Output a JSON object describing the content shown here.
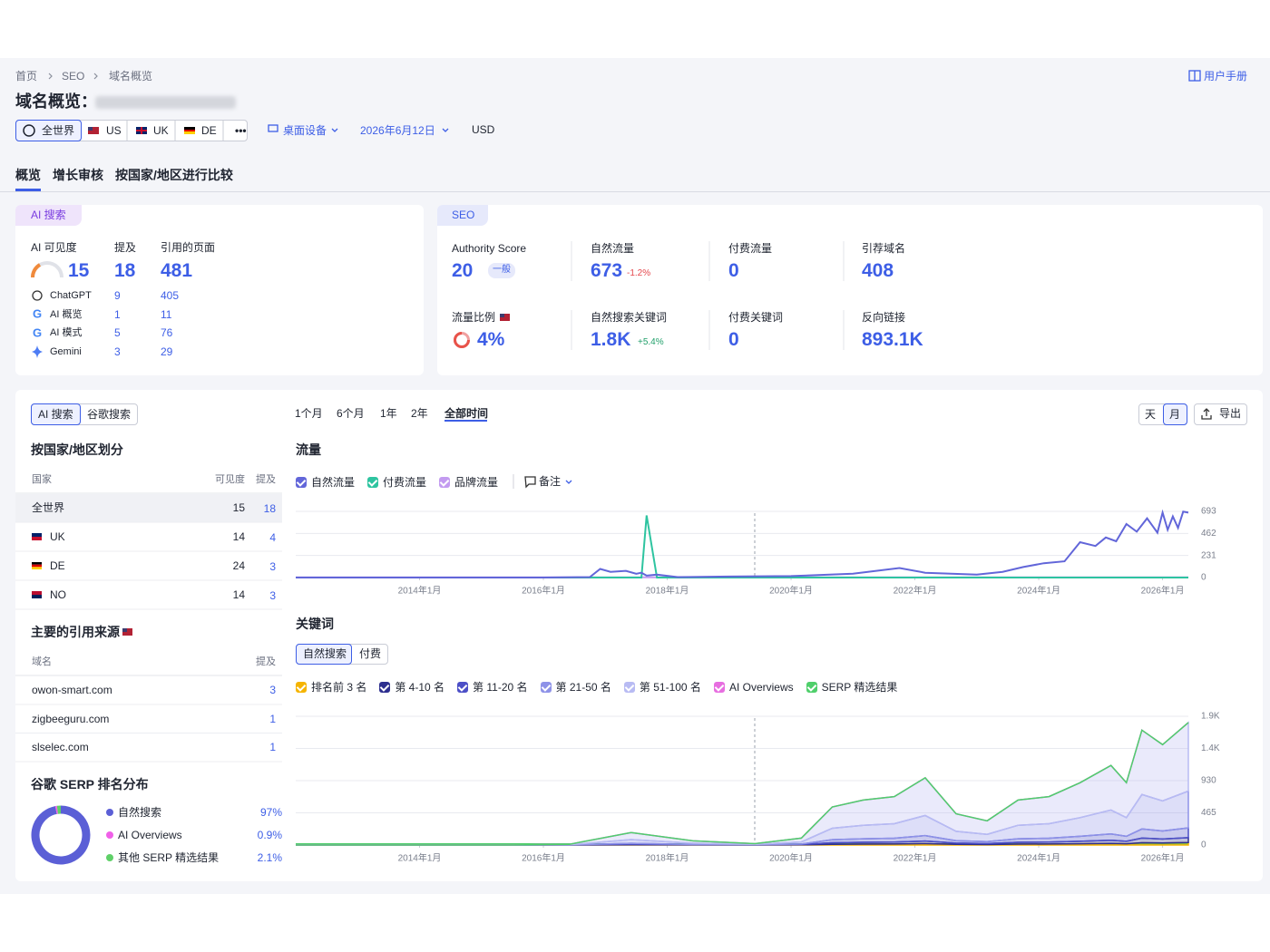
{
  "breadcrumb": [
    "首页",
    "SEO",
    "域名概览"
  ],
  "manual": "用户手册",
  "title": "域名概览：",
  "databases": [
    "全世界",
    "US",
    "UK",
    "DE"
  ],
  "more": "•••",
  "device": "桌面设备",
  "date": "2026年6月12日",
  "currency": "USD",
  "tabs": [
    "概览",
    "增长审核",
    "按国家/地区进行比较"
  ],
  "ai_card": {
    "badge": "AI 搜索",
    "headers": [
      "AI 可见度",
      "提及",
      "引用的页面"
    ],
    "totals": [
      15,
      18,
      481
    ],
    "rows": [
      {
        "name": "ChatGPT",
        "mentions": 9,
        "pages": 405
      },
      {
        "name": "AI 概览",
        "mentions": 1,
        "pages": 11
      },
      {
        "name": "AI 模式",
        "mentions": 5,
        "pages": 76
      },
      {
        "name": "Gemini",
        "mentions": 3,
        "pages": 29
      }
    ]
  },
  "seo_card": {
    "badge": "SEO",
    "metrics": [
      {
        "label": "Authority Score",
        "value": 20,
        "tag": "一般"
      },
      {
        "label": "自然流量",
        "value": 673,
        "change": "-1.2%"
      },
      {
        "label": "付费流量",
        "value": 0
      },
      {
        "label": "引荐域名",
        "value": 408
      },
      {
        "label": "流量比例",
        "value": "4%"
      },
      {
        "label": "自然搜索关键词",
        "value": "1.8K",
        "change": "+5.4%"
      },
      {
        "label": "付费关键词",
        "value": 0
      },
      {
        "label": "反向链接",
        "value": "893.1K"
      }
    ]
  },
  "panel": {
    "source_toggle": [
      "AI 搜索",
      "谷歌搜索"
    ],
    "periods": [
      "1个月",
      "6个月",
      "1年",
      "2年",
      "全部时间"
    ],
    "granularity": [
      "天",
      "月"
    ],
    "export": "导出",
    "notes": "备注",
    "keyword_toggle": [
      "自然搜索",
      "付费"
    ],
    "countries": {
      "title": "按国家/地区划分",
      "headers": [
        "国家",
        "可见度",
        "提及"
      ],
      "rows": [
        [
          "全世界",
          15,
          18
        ],
        [
          "UK",
          14,
          4
        ],
        [
          "DE",
          24,
          3
        ],
        [
          "NO",
          14,
          3
        ]
      ]
    },
    "sources": {
      "title": "主要的引用来源",
      "headers": [
        "域名",
        "提及"
      ],
      "rows": [
        [
          "owon-smart.com",
          3
        ],
        [
          "zigbeeguru.com",
          1
        ],
        [
          "slselec.com",
          1
        ]
      ]
    }
  },
  "chart_data": [
    {
      "type": "line",
      "title": "流量",
      "x": [
        "2012-01",
        "2013-01",
        "2014-01",
        "2015-01",
        "2016-01",
        "2016-10",
        "2016-12",
        "2017-02",
        "2017-05",
        "2017-07",
        "2017-08",
        "2017-09",
        "2017-11",
        "2018-03",
        "2019-01",
        "2020-01",
        "2021-01",
        "2021-10",
        "2022-03",
        "2023-01",
        "2023-06",
        "2023-10",
        "2024-02",
        "2024-06",
        "2024-09",
        "2024-12",
        "2025-02",
        "2025-04",
        "2025-06",
        "2025-08",
        "2025-10",
        "2025-12",
        "2026-01",
        "2026-02",
        "2026-03",
        "2026-04",
        "2026-05",
        "2026-06"
      ],
      "series": [
        {
          "name": "自然流量",
          "color": "#6266d9",
          "values": [
            0,
            0,
            0,
            0,
            0,
            5,
            90,
            60,
            70,
            40,
            50,
            20,
            30,
            5,
            10,
            15,
            40,
            100,
            50,
            30,
            60,
            110,
            150,
            170,
            370,
            330,
            420,
            380,
            560,
            480,
            620,
            470,
            680,
            500,
            640,
            520,
            690,
            680
          ]
        },
        {
          "name": "付费流量",
          "color": "#2ec4a0",
          "values": [
            0,
            0,
            0,
            0,
            0,
            0,
            0,
            0,
            0,
            0,
            0,
            650,
            0,
            0,
            0,
            0,
            0,
            0,
            0,
            0,
            0,
            0,
            0,
            0,
            0,
            0,
            0,
            0,
            0,
            0,
            0,
            0,
            0,
            0,
            0,
            0,
            0,
            0
          ]
        },
        {
          "name": "品牌流量",
          "color": "#c39bf0",
          "values": [
            3,
            3,
            3,
            3,
            3,
            3,
            3,
            3,
            3,
            3,
            3,
            3,
            3,
            3,
            3,
            3,
            3,
            3,
            3,
            3,
            3,
            3,
            3,
            3,
            3,
            3,
            3,
            3,
            3,
            3,
            3,
            3,
            3,
            3,
            3,
            3,
            3,
            3
          ]
        }
      ],
      "xlim": [
        "2012-01",
        "2026-06"
      ],
      "xticks": [
        {
          "value": "2014-01",
          "label": "2014年1月"
        },
        {
          "value": "2016-01",
          "label": "2016年1月"
        },
        {
          "value": "2018-01",
          "label": "2018年1月"
        },
        {
          "value": "2020-01",
          "label": "2020年1月"
        },
        {
          "value": "2022-01",
          "label": "2022年1月"
        },
        {
          "value": "2024-01",
          "label": "2024年1月"
        },
        {
          "value": "2026-01",
          "label": "2026年1月"
        }
      ],
      "ylim": [
        0,
        693
      ],
      "yticks": [
        0,
        231,
        462,
        693
      ],
      "grid": true
    },
    {
      "type": "area",
      "title": "关键词",
      "stacked": true,
      "x": [
        "2012-01",
        "2015-06",
        "2016-06",
        "2017-06",
        "2018-06",
        "2019-06",
        "2020-03",
        "2020-09",
        "2021-03",
        "2021-09",
        "2022-03",
        "2022-09",
        "2023-03",
        "2023-09",
        "2024-03",
        "2024-09",
        "2025-03",
        "2025-06",
        "2025-09",
        "2026-01",
        "2026-06"
      ],
      "series": [
        {
          "name": "排名前 3 名",
          "color": "#f5b400",
          "values": [
            0,
            0,
            0,
            4,
            1,
            0,
            2,
            11,
            13,
            14,
            19,
            9,
            7,
            13,
            14,
            18,
            23,
            18,
            33,
            29,
            35
          ]
        },
        {
          "name": "第 4-10 名",
          "color": "#2d2f8f",
          "values": [
            0,
            0,
            0,
            7,
            2,
            1,
            4,
            22,
            26,
            28,
            39,
            18,
            14,
            26,
            28,
            36,
            46,
            36,
            66,
            58,
            71
          ]
        },
        {
          "name": "第 11-20 名",
          "color": "#4c4fc7",
          "values": [
            0,
            0,
            1,
            14,
            5,
            2,
            8,
            44,
            52,
            56,
            78,
            36,
            28,
            52,
            56,
            72,
            92,
            72,
            133,
            116,
            142
          ]
        },
        {
          "name": "第 21-50 名",
          "color": "#8e92e8",
          "values": [
            0,
            0,
            3,
            54,
            18,
            6,
            30,
            165,
            195,
            210,
            291,
            135,
            105,
            195,
            210,
            270,
            345,
            270,
            498,
            435,
            531
          ]
        },
        {
          "name": "第 51-100 名",
          "color": "#b8bbf3",
          "values": [
            0,
            0,
            6,
            101,
            34,
            11,
            56,
            308,
            364,
            392,
            543,
            252,
            196,
            364,
            392,
            504,
            644,
            504,
            930,
            812,
            991
          ]
        },
        {
          "name": "AI Overviews",
          "color": "#e76ee0",
          "values": [
            0,
            0,
            0,
            0,
            0,
            0,
            0,
            0,
            0,
            0,
            0,
            0,
            0,
            0,
            0,
            0,
            0,
            0,
            0,
            0,
            0
          ]
        },
        {
          "name": "SERP 精选结果",
          "color": "#4fcf6b",
          "values": [
            0,
            0,
            0,
            0,
            0,
            0,
            0,
            0,
            0,
            0,
            0,
            0,
            0,
            0,
            0,
            0,
            0,
            0,
            0,
            0,
            0
          ]
        }
      ],
      "xlim": [
        "2012-01",
        "2026-06"
      ],
      "xticks": [
        {
          "value": "2014-01",
          "label": "2014年1月"
        },
        {
          "value": "2016-01",
          "label": "2016年1月"
        },
        {
          "value": "2018-01",
          "label": "2018年1月"
        },
        {
          "value": "2020-01",
          "label": "2020年1月"
        },
        {
          "value": "2022-01",
          "label": "2022年1月"
        },
        {
          "value": "2024-01",
          "label": "2024年1月"
        },
        {
          "value": "2026-01",
          "label": "2026年1月"
        }
      ],
      "ylim": [
        0,
        1860
      ],
      "yticks": [
        0,
        465,
        930,
        {
          "value": 1395,
          "label": "1.4K"
        },
        {
          "value": 1860,
          "label": "1.9K"
        }
      ],
      "grid": true
    },
    {
      "type": "pie",
      "title": "谷歌 SERP 排名分布",
      "categories": [
        "自然搜索",
        "AI Overviews",
        "其他 SERP 精选结果"
      ],
      "values": [
        97,
        0.9,
        2.1
      ],
      "value_labels": [
        "97%",
        "0.9%",
        "2.1%"
      ],
      "colors": [
        "#5b5fd6",
        "#f060e8",
        "#5fd068"
      ]
    }
  ]
}
